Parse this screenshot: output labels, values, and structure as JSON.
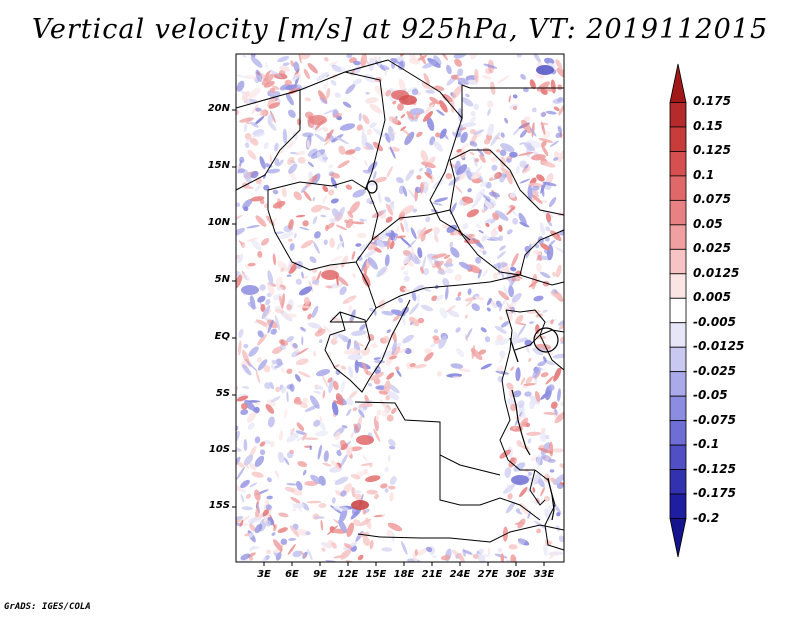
{
  "title": "Vertical velocity [m/s] at 925hPa, VT: 2019112015",
  "credit": "GrADS: IGES/COLA",
  "lat_labels": [
    "20N",
    "15N",
    "10N",
    "5N",
    "EQ",
    "5S",
    "10S",
    "15S"
  ],
  "lon_labels": [
    "3E",
    "6E",
    "9E",
    "12E",
    "15E",
    "18E",
    "21E",
    "24E",
    "27E",
    "30E",
    "33E"
  ],
  "colorbar": {
    "labels": [
      "0.175",
      "0.15",
      "0.125",
      "0.1",
      "0.075",
      "0.05",
      "0.025",
      "0.0125",
      "0.005",
      "-0.005",
      "-0.0125",
      "-0.025",
      "-0.05",
      "-0.075",
      "-0.1",
      "-0.125",
      "-0.175",
      "-0.2"
    ],
    "colors": [
      "#a01818",
      "#b52a2a",
      "#c83c3c",
      "#d65050",
      "#e06868",
      "#e88282",
      "#f0a0a0",
      "#f6c4c4",
      "#fbe4e4",
      "#ffffff",
      "#e6e6f8",
      "#c8c8f0",
      "#aaaaea",
      "#8c8ce0",
      "#6e6ed4",
      "#5050c4",
      "#3232b0",
      "#1e1ea0",
      "#14148c"
    ]
  }
}
